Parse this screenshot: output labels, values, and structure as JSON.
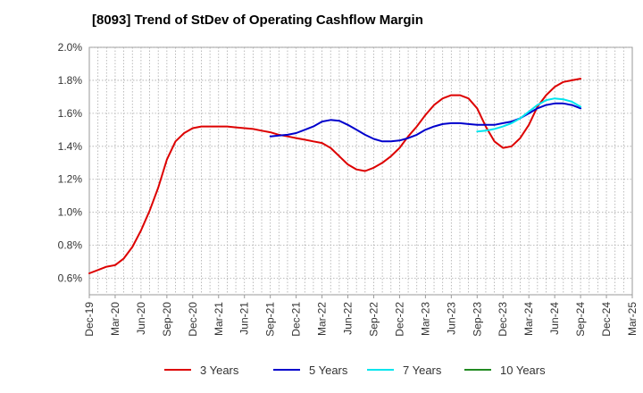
{
  "chart_data": {
    "type": "line",
    "title": "[8093]  Trend of StDev of Operating Cashflow Margin",
    "xlabel": "",
    "ylabel": "",
    "ylim": [
      0.5,
      2.0
    ],
    "y_ticks": [
      0.6,
      0.8,
      1.0,
      1.2,
      1.4,
      1.6,
      1.8,
      2.0
    ],
    "y_tick_labels": [
      "0.6%",
      "0.8%",
      "1.0%",
      "1.2%",
      "1.4%",
      "1.6%",
      "1.8%",
      "2.0%"
    ],
    "x_tick_labels": [
      "Dec-19",
      "Mar-20",
      "Jun-20",
      "Sep-20",
      "Dec-20",
      "Mar-21",
      "Jun-21",
      "Sep-21",
      "Dec-21",
      "Mar-22",
      "Jun-22",
      "Sep-22",
      "Dec-22",
      "Mar-23",
      "Jun-23",
      "Sep-23",
      "Dec-23",
      "Mar-24",
      "Jun-24",
      "Sep-24",
      "Dec-24",
      "Mar-25"
    ],
    "x_range_months": [
      "Dec-19",
      "Mar-25"
    ],
    "grid": true,
    "legend_position": "bottom",
    "series": [
      {
        "name": "3 Years",
        "color": "#dd0000",
        "x": [
          "Dec-19",
          "Jan-20",
          "Feb-20",
          "Mar-20",
          "Apr-20",
          "May-20",
          "Jun-20",
          "Jul-20",
          "Aug-20",
          "Sep-20",
          "Oct-20",
          "Nov-20",
          "Dec-20",
          "Jan-21",
          "Feb-21",
          "Mar-21",
          "Apr-21",
          "May-21",
          "Jun-21",
          "Jul-21",
          "Aug-21",
          "Sep-21",
          "Oct-21",
          "Nov-21",
          "Dec-21",
          "Jan-22",
          "Feb-22",
          "Mar-22",
          "Apr-22",
          "May-22",
          "Jun-22",
          "Jul-22",
          "Aug-22",
          "Sep-22",
          "Oct-22",
          "Nov-22",
          "Dec-22",
          "Jan-23",
          "Feb-23",
          "Mar-23",
          "Apr-23",
          "May-23",
          "Jun-23",
          "Jul-23",
          "Aug-23",
          "Sep-23",
          "Oct-23",
          "Nov-23",
          "Dec-23",
          "Jan-24",
          "Feb-24",
          "Mar-24",
          "Apr-24",
          "May-24",
          "Jun-24",
          "Jul-24",
          "Aug-24",
          "Sep-24"
        ],
        "values": [
          0.63,
          0.65,
          0.67,
          0.68,
          0.72,
          0.79,
          0.89,
          1.01,
          1.15,
          1.32,
          1.43,
          1.48,
          1.51,
          1.52,
          1.52,
          1.52,
          1.52,
          1.515,
          1.51,
          1.505,
          1.495,
          1.485,
          1.47,
          1.46,
          1.45,
          1.44,
          1.43,
          1.42,
          1.39,
          1.34,
          1.29,
          1.26,
          1.25,
          1.27,
          1.3,
          1.34,
          1.39,
          1.46,
          1.52,
          1.59,
          1.65,
          1.69,
          1.71,
          1.71,
          1.69,
          1.63,
          1.52,
          1.43,
          1.39,
          1.4,
          1.45,
          1.53,
          1.64,
          1.71,
          1.76,
          1.79,
          1.8,
          1.81
        ]
      },
      {
        "name": "5 Years",
        "color": "#0000cc",
        "x": [
          "Sep-21",
          "Oct-21",
          "Nov-21",
          "Dec-21",
          "Jan-22",
          "Feb-22",
          "Mar-22",
          "Apr-22",
          "May-22",
          "Jun-22",
          "Jul-22",
          "Aug-22",
          "Sep-22",
          "Oct-22",
          "Nov-22",
          "Dec-22",
          "Jan-23",
          "Feb-23",
          "Mar-23",
          "Apr-23",
          "May-23",
          "Jun-23",
          "Jul-23",
          "Aug-23",
          "Sep-23",
          "Oct-23",
          "Nov-23",
          "Dec-23",
          "Jan-24",
          "Feb-24",
          "Mar-24",
          "Apr-24",
          "May-24",
          "Jun-24",
          "Jul-24",
          "Aug-24",
          "Sep-24"
        ],
        "values": [
          1.46,
          1.465,
          1.47,
          1.48,
          1.5,
          1.52,
          1.55,
          1.56,
          1.555,
          1.53,
          1.5,
          1.47,
          1.445,
          1.43,
          1.43,
          1.435,
          1.45,
          1.47,
          1.5,
          1.52,
          1.535,
          1.54,
          1.54,
          1.535,
          1.53,
          1.53,
          1.53,
          1.54,
          1.55,
          1.57,
          1.6,
          1.63,
          1.65,
          1.66,
          1.66,
          1.65,
          1.63
        ]
      },
      {
        "name": "7 Years",
        "color": "#00e5ee",
        "x": [
          "Sep-23",
          "Oct-23",
          "Nov-23",
          "Dec-23",
          "Jan-24",
          "Feb-24",
          "Mar-24",
          "Apr-24",
          "May-24",
          "Jun-24",
          "Jul-24",
          "Aug-24",
          "Sep-24"
        ],
        "values": [
          1.49,
          1.495,
          1.505,
          1.52,
          1.54,
          1.57,
          1.61,
          1.65,
          1.68,
          1.69,
          1.685,
          1.67,
          1.64
        ]
      },
      {
        "name": "10 Years",
        "color": "#228b22",
        "x": [],
        "values": []
      }
    ]
  }
}
